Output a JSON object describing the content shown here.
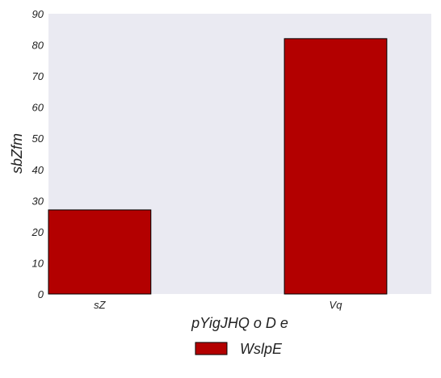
{
  "chart_data": {
    "type": "bar",
    "categories": [
      "sZ",
      "Vq"
    ],
    "series": [
      {
        "name": "WslpE",
        "values": [
          27,
          82
        ],
        "color": "#b30000"
      }
    ],
    "xlabel": "pYigJHQ  o D e",
    "ylabel": "sbZfm",
    "ylim": [
      0,
      90
    ],
    "yticks": [
      0,
      10,
      20,
      30,
      40,
      50,
      60,
      70,
      80,
      90
    ],
    "grid": false,
    "plot_background": "#eaeaf2",
    "bar_edge_color": "#000000",
    "legend_position": "bottom-center"
  }
}
